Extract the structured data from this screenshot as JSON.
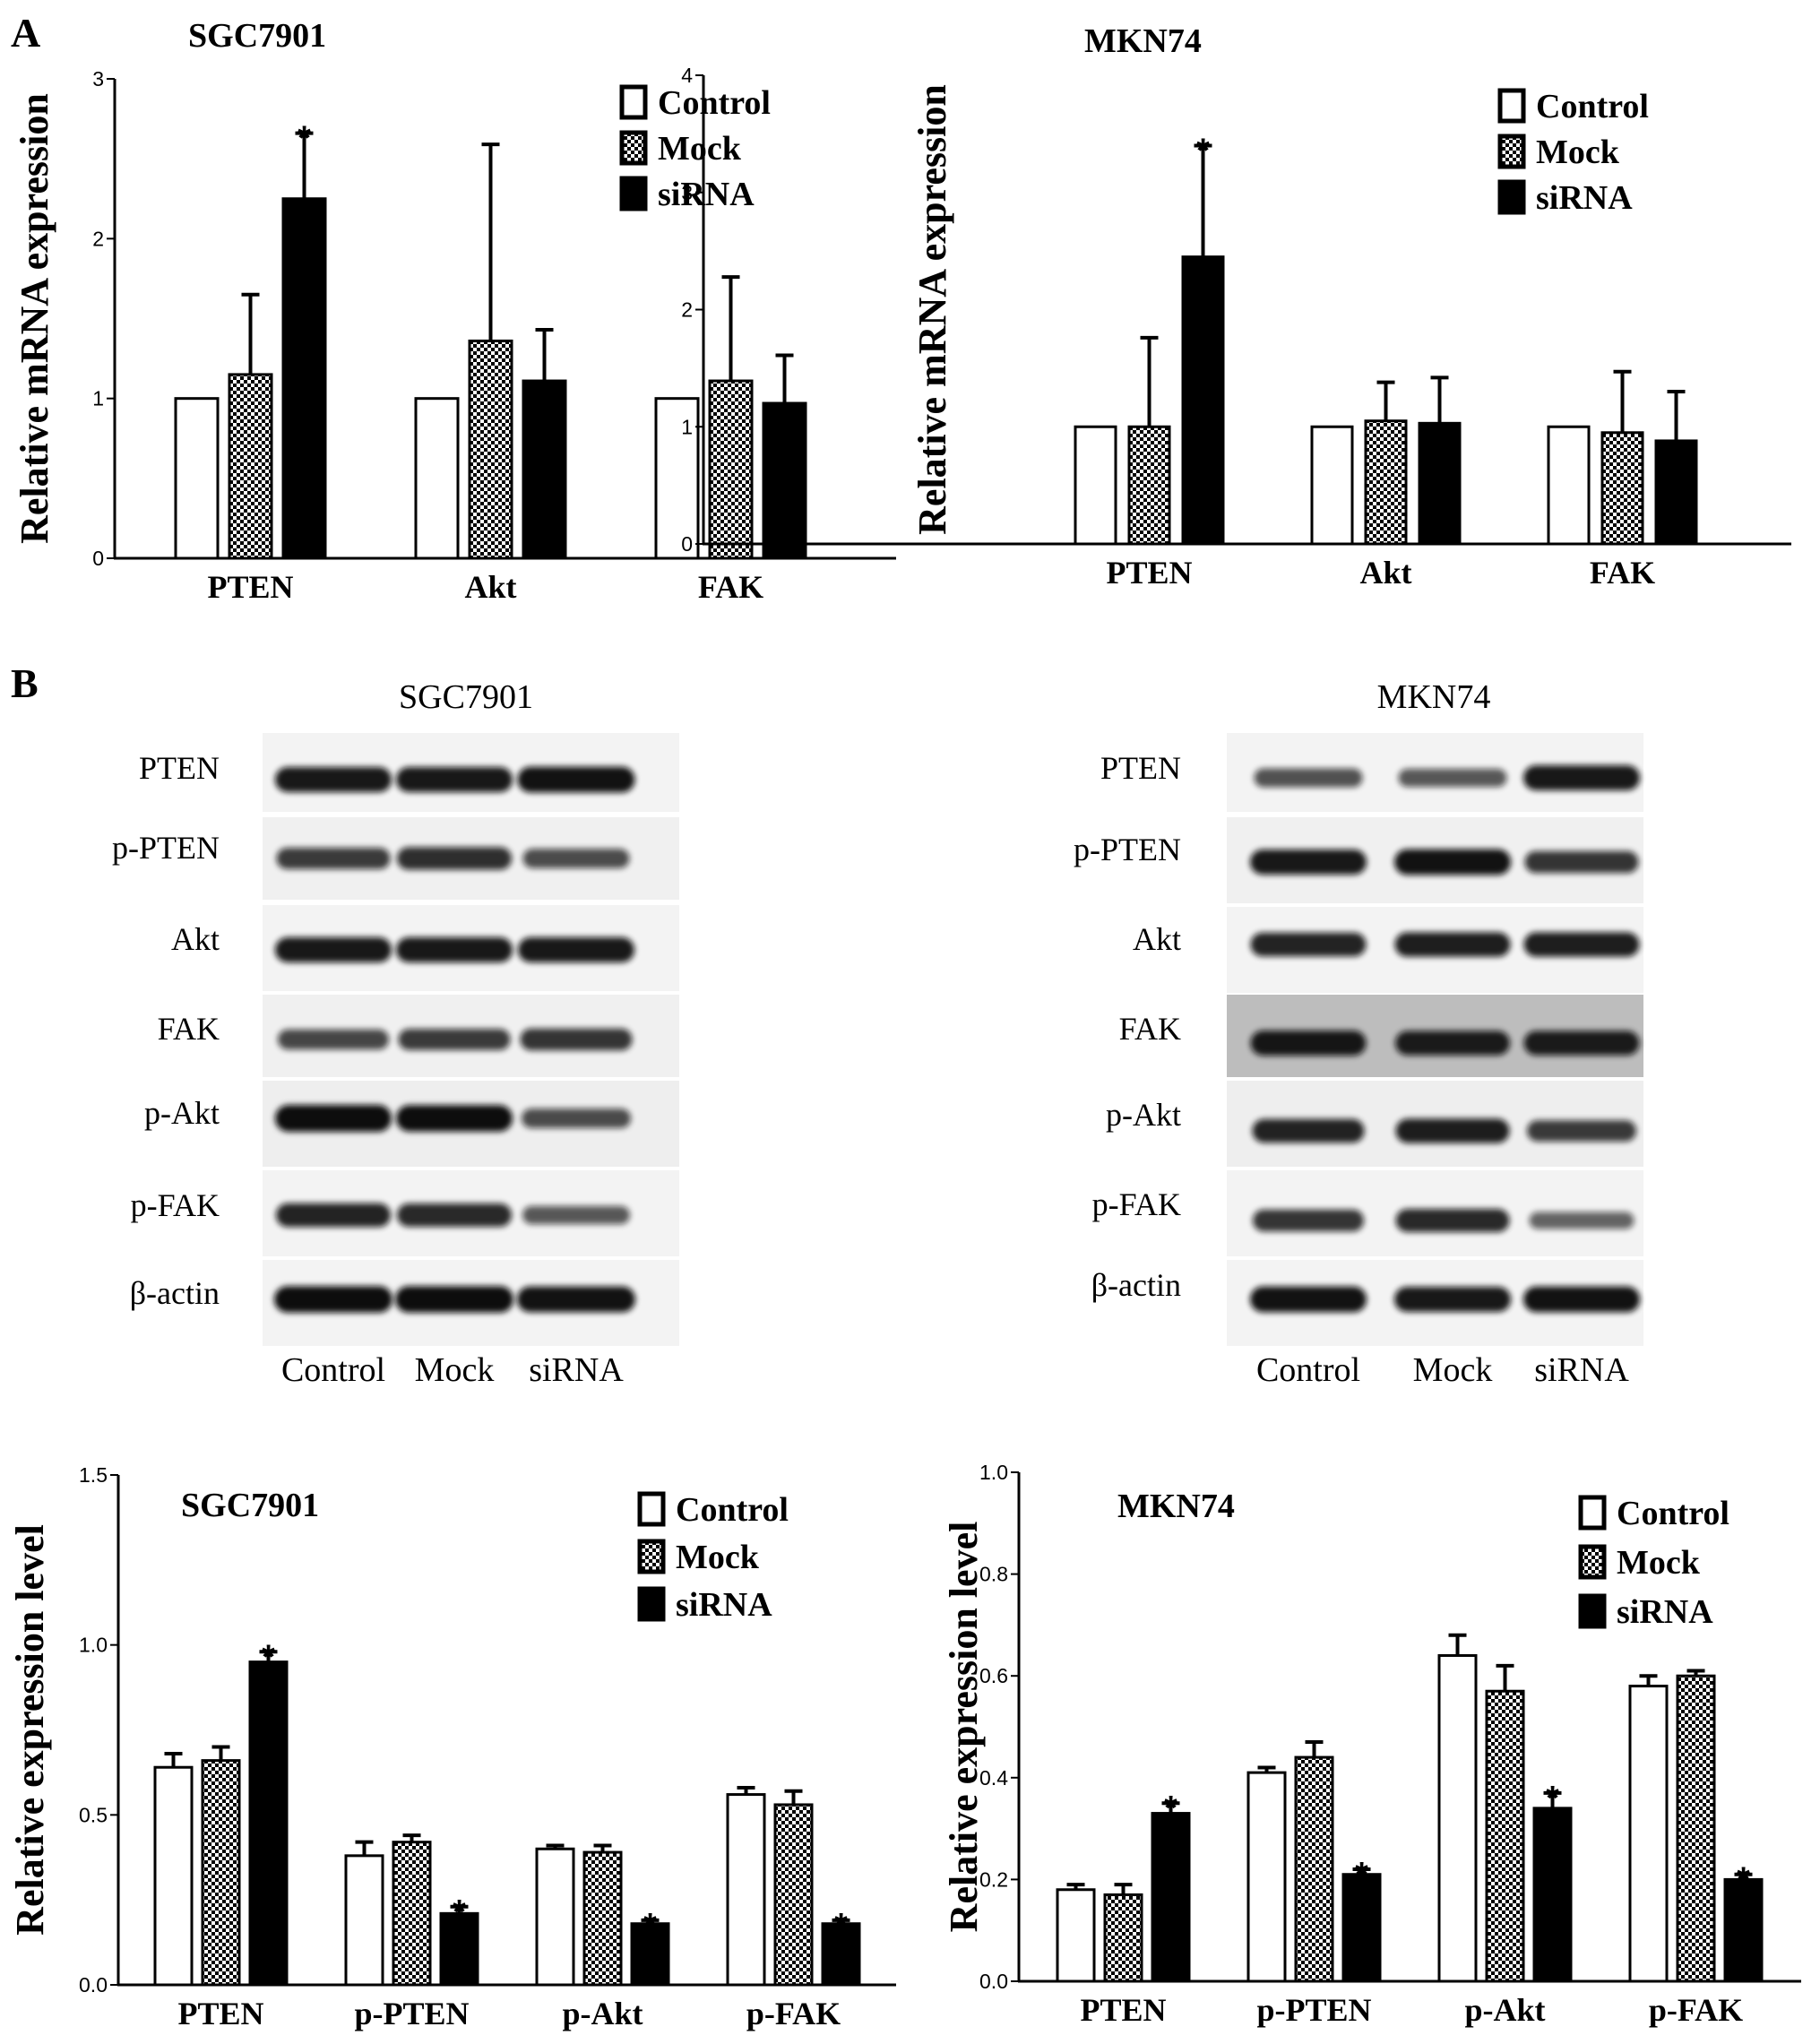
{
  "panels": {
    "a": "A",
    "b": "B"
  },
  "colors": {
    "axis": "#000000",
    "control_fill": "#ffffff",
    "mock_fill": "checkered",
    "sirna_fill": "#000000",
    "blot_background": "#f2f2f2",
    "blot_background_dark": "#bdbdbd",
    "band": "#111111"
  },
  "western": {
    "left": {
      "title": "SGC7901",
      "rows": [
        "PTEN",
        "p-PTEN",
        "Akt",
        "FAK",
        "p-Akt",
        "p-FAK",
        "β-actin"
      ],
      "lanes": [
        "Control",
        "Mock",
        "siRNA"
      ]
    },
    "right": {
      "title": "MKN74",
      "rows": [
        "PTEN",
        "p-PTEN",
        "Akt",
        "FAK",
        "p-Akt",
        "p-FAK",
        "β-actin"
      ],
      "lanes": [
        "Control",
        "Mock",
        "siRNA"
      ]
    }
  },
  "chart_data": [
    {
      "type": "bar",
      "title": "SGC7901",
      "ylabel": "Relative mRNA expression",
      "xlabel": "",
      "categories": [
        "PTEN",
        "Akt",
        "FAK"
      ],
      "series": [
        {
          "name": "Control",
          "values": [
            1.0,
            1.0,
            1.0
          ],
          "errors": [
            0,
            0,
            0
          ]
        },
        {
          "name": "Mock",
          "values": [
            1.15,
            1.36,
            1.11
          ],
          "errors": [
            0.5,
            1.23,
            0.65
          ]
        },
        {
          "name": "siRNA",
          "values": [
            2.25,
            1.11,
            0.97
          ],
          "errors": [
            0.41,
            0.32,
            0.3
          ]
        }
      ],
      "significance": [
        {
          "category": "PTEN",
          "series": "siRNA",
          "label": "*"
        }
      ],
      "ylim": [
        0,
        3
      ],
      "yticks": [
        "0",
        "1",
        "2",
        "3"
      ],
      "legend": "top-right",
      "grid": false
    },
    {
      "type": "bar",
      "title": "MKN74",
      "ylabel": "Relative mRNA expression",
      "xlabel": "",
      "categories": [
        "PTEN",
        "Akt",
        "FAK"
      ],
      "series": [
        {
          "name": "Control",
          "values": [
            1.0,
            1.0,
            1.0
          ],
          "errors": [
            0,
            0,
            0
          ]
        },
        {
          "name": "Mock",
          "values": [
            1.0,
            1.05,
            0.95
          ],
          "errors": [
            0.76,
            0.33,
            0.52
          ]
        },
        {
          "name": "siRNA",
          "values": [
            2.45,
            1.03,
            0.88
          ],
          "errors": [
            0.95,
            0.39,
            0.42
          ]
        }
      ],
      "significance": [
        {
          "category": "PTEN",
          "series": "siRNA",
          "label": "*"
        }
      ],
      "ylim": [
        0,
        4
      ],
      "yticks": [
        "0",
        "1",
        "2",
        "3",
        "4"
      ],
      "legend": "top-right",
      "grid": false
    },
    {
      "type": "bar",
      "title": "SGC7901",
      "ylabel": "Relative expression level",
      "xlabel": "",
      "categories": [
        "PTEN",
        "p-PTEN",
        "p-Akt",
        "p-FAK"
      ],
      "series": [
        {
          "name": "Control",
          "values": [
            0.64,
            0.38,
            0.4,
            0.56
          ],
          "errors": [
            0.04,
            0.04,
            0.01,
            0.02
          ]
        },
        {
          "name": "Mock",
          "values": [
            0.66,
            0.42,
            0.39,
            0.53
          ],
          "errors": [
            0.04,
            0.02,
            0.02,
            0.04
          ]
        },
        {
          "name": "siRNA",
          "values": [
            0.95,
            0.21,
            0.18,
            0.18
          ],
          "errors": [
            0.03,
            0.02,
            0.01,
            0.01
          ]
        }
      ],
      "significance": [
        {
          "category": "PTEN",
          "series": "siRNA",
          "label": "*"
        },
        {
          "category": "p-PTEN",
          "series": "siRNA",
          "label": "*"
        },
        {
          "category": "p-Akt",
          "series": "siRNA",
          "label": "*"
        },
        {
          "category": "p-FAK",
          "series": "siRNA",
          "label": "*"
        }
      ],
      "ylim": [
        0,
        1.5
      ],
      "yticks": [
        "0.0",
        "0.5",
        "1.0",
        "1.5"
      ],
      "legend": "top-right",
      "grid": false
    },
    {
      "type": "bar",
      "title": "MKN74",
      "ylabel": "Relative expression level",
      "xlabel": "",
      "categories": [
        "PTEN",
        "p-PTEN",
        "p-Akt",
        "p-FAK"
      ],
      "series": [
        {
          "name": "Control",
          "values": [
            0.18,
            0.41,
            0.64,
            0.58
          ],
          "errors": [
            0.01,
            0.01,
            0.04,
            0.02
          ]
        },
        {
          "name": "Mock",
          "values": [
            0.17,
            0.44,
            0.57,
            0.6
          ],
          "errors": [
            0.02,
            0.03,
            0.05,
            0.01
          ]
        },
        {
          "name": "siRNA",
          "values": [
            0.33,
            0.21,
            0.34,
            0.2
          ],
          "errors": [
            0.02,
            0.01,
            0.03,
            0.01
          ]
        }
      ],
      "significance": [
        {
          "category": "PTEN",
          "series": "siRNA",
          "label": "*"
        },
        {
          "category": "p-PTEN",
          "series": "siRNA",
          "label": "*"
        },
        {
          "category": "p-Akt",
          "series": "siRNA",
          "label": "*"
        },
        {
          "category": "p-FAK",
          "series": "siRNA",
          "label": "*"
        }
      ],
      "ylim": [
        0,
        1.0
      ],
      "yticks": [
        "0.0",
        "0.2",
        "0.4",
        "0.6",
        "0.8",
        "1.0"
      ],
      "legend": "top-right",
      "grid": false
    }
  ]
}
